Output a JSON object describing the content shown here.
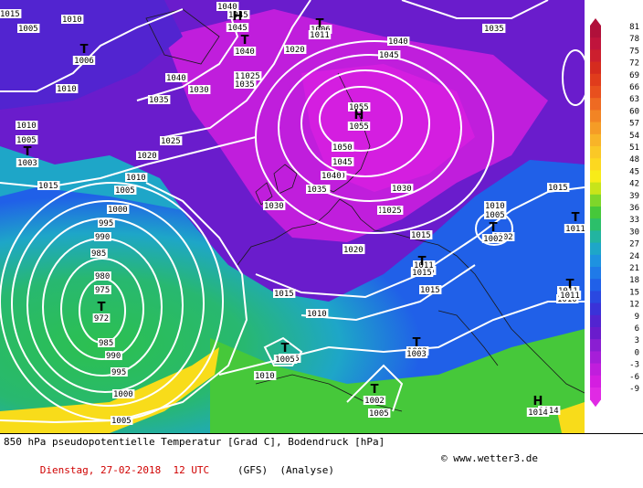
{
  "footer": {
    "title": "850 hPa pseudopotentielle Temperatur [Grad C], Bodendruck [hPa]",
    "date": "Dienstag, 27-02-2018  12 UTC",
    "model": "(GFS)  (Analyse)",
    "credit": "© www.wetter3.de"
  },
  "legend": {
    "values": [
      "81",
      "78",
      "75",
      "72",
      "69",
      "66",
      "63",
      "60",
      "57",
      "54",
      "51",
      "48",
      "45",
      "42",
      "39",
      "36",
      "33",
      "30",
      "27",
      "24",
      "21",
      "18",
      "15",
      "12",
      "9",
      "6",
      "3",
      "0",
      "-3",
      "-6",
      "-9"
    ],
    "colors": [
      "#b0103a",
      "#c0143c",
      "#cc1f2e",
      "#d52b1e",
      "#e03c1c",
      "#e8501e",
      "#ee6a22",
      "#f28424",
      "#f59c26",
      "#f8b428",
      "#fac826",
      "#fcd820",
      "#f8ec18",
      "#c8e41a",
      "#7ed62a",
      "#46c83a",
      "#2cbf6a",
      "#22b4a0",
      "#1ea6c8",
      "#1e92e0",
      "#1f7ae8",
      "#2060e8",
      "#2a48e0",
      "#3a32d8",
      "#5224d0",
      "#6a1ccc",
      "#8a1ed2",
      "#a61ed8",
      "#c01edc",
      "#d41ee0",
      "#e02ae4"
    ]
  },
  "pressure_labels": [
    "1010",
    "1005",
    "1010",
    "1010",
    "1005",
    "1015",
    "1015",
    "1020",
    "1025",
    "1030",
    "1035",
    "1040",
    "1045",
    "1040",
    "1035",
    "1030",
    "1025",
    "1020",
    "1015",
    "1010",
    "1005",
    "1000",
    "995",
    "990",
    "985",
    "980",
    "975",
    "985",
    "990",
    "995",
    "1000",
    "1005",
    "1010",
    "1005",
    "1015",
    "1020",
    "1025",
    "1030",
    "1035",
    "1040",
    "1045",
    "1050",
    "1055",
    "1050",
    "1040",
    "1035",
    "1030",
    "1025",
    "1020",
    "1015",
    "1010",
    "1005",
    "1035",
    "1035",
    "1010",
    "1005",
    "1015",
    "1010",
    "1005",
    "1010",
    "1015",
    "1002",
    "1003",
    "1005",
    "1014",
    "1011",
    "1011",
    "1010",
    "1006",
    "1040",
    "1045"
  ],
  "systems": [
    {
      "type": "T",
      "value": "1006"
    },
    {
      "type": "T",
      "value": "1003"
    },
    {
      "type": "H",
      "value": "1055"
    },
    {
      "type": "T",
      "value": "972"
    },
    {
      "type": "T",
      "value": "1015"
    },
    {
      "type": "T",
      "value": "1002"
    },
    {
      "type": "T",
      "value": "1011"
    },
    {
      "type": "T",
      "value": "1005"
    },
    {
      "type": "T",
      "value": "1003"
    },
    {
      "type": "T",
      "value": "1002"
    },
    {
      "type": "H",
      "value": "1014"
    },
    {
      "type": "T",
      "value": "1011"
    },
    {
      "type": "T",
      "value": "1011"
    },
    {
      "type": "H",
      "value": "1045"
    },
    {
      "type": "T",
      "value": "1040"
    }
  ]
}
